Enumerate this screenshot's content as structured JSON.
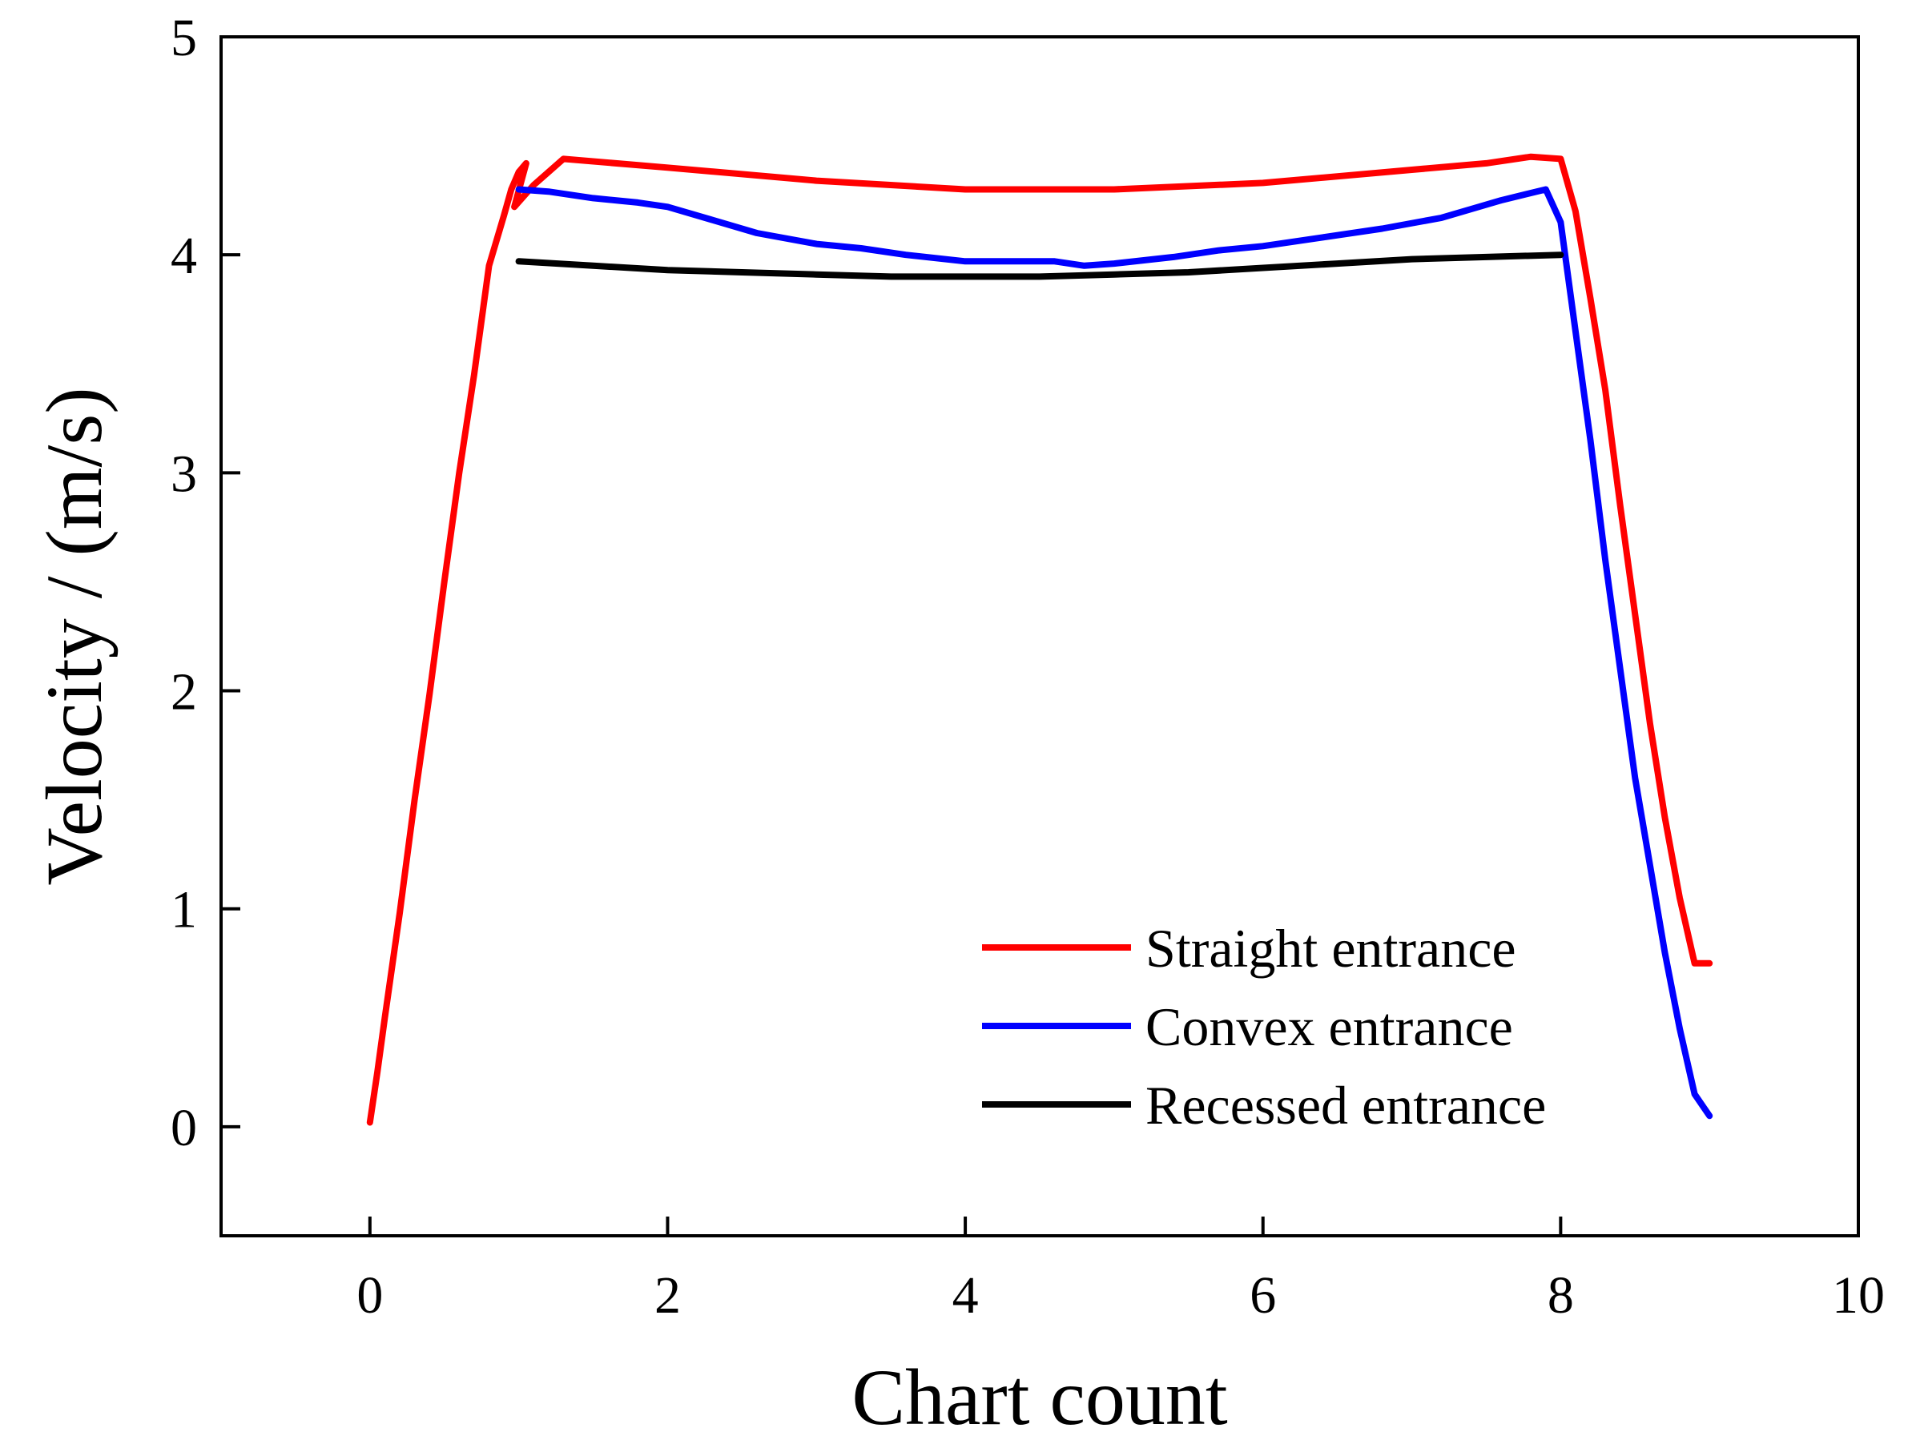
{
  "chart_data": {
    "type": "line",
    "title": "",
    "xlabel": "Chart count",
    "ylabel": "Velocity / (m/s)",
    "xlim": [
      -1,
      10
    ],
    "ylim": [
      -0.5,
      5
    ],
    "xticks": [
      0,
      2,
      4,
      6,
      8,
      10
    ],
    "yticks": [
      0,
      1,
      2,
      3,
      4,
      5
    ],
    "xtick_labels": [
      "0",
      "2",
      "4",
      "6",
      "8",
      "10"
    ],
    "ytick_labels": [
      "0",
      "1",
      "2",
      "3",
      "4",
      "5"
    ],
    "grid": false,
    "legend_position": "bottom-right",
    "series": [
      {
        "name": "Straight entrance",
        "color": "#ff0000",
        "x": [
          0.0,
          0.05,
          0.1,
          0.2,
          0.3,
          0.4,
          0.5,
          0.6,
          0.7,
          0.8,
          0.9,
          0.95,
          1.0,
          1.05,
          0.97,
          1.1,
          1.3,
          2.0,
          3.0,
          4.0,
          5.0,
          6.0,
          7.0,
          7.5,
          7.8,
          8.0,
          8.1,
          8.2,
          8.3,
          8.4,
          8.5,
          8.6,
          8.7,
          8.8,
          8.9,
          9.0
        ],
        "y": [
          0.02,
          0.25,
          0.5,
          0.98,
          1.5,
          1.98,
          2.5,
          3.0,
          3.45,
          3.95,
          4.18,
          4.3,
          4.38,
          4.42,
          4.22,
          4.32,
          4.44,
          4.4,
          4.34,
          4.3,
          4.3,
          4.33,
          4.39,
          4.42,
          4.45,
          4.44,
          4.2,
          3.8,
          3.38,
          2.85,
          2.35,
          1.85,
          1.42,
          1.05,
          0.75,
          0.75
        ]
      },
      {
        "name": "Convex entrance",
        "color": "#0000ff",
        "x": [
          1.0,
          1.2,
          1.5,
          1.8,
          2.0,
          2.3,
          2.6,
          3.0,
          3.3,
          3.6,
          4.0,
          4.3,
          4.6,
          4.8,
          5.0,
          5.4,
          5.7,
          6.0,
          6.4,
          6.8,
          7.2,
          7.6,
          7.9,
          8.0,
          8.1,
          8.2,
          8.3,
          8.4,
          8.5,
          8.6,
          8.7,
          8.8,
          8.9,
          9.0
        ],
        "y": [
          4.3,
          4.29,
          4.26,
          4.24,
          4.22,
          4.16,
          4.1,
          4.05,
          4.03,
          4.0,
          3.97,
          3.97,
          3.97,
          3.95,
          3.96,
          3.99,
          4.02,
          4.04,
          4.08,
          4.12,
          4.17,
          4.25,
          4.3,
          4.15,
          3.65,
          3.15,
          2.6,
          2.1,
          1.6,
          1.2,
          0.8,
          0.45,
          0.15,
          0.05
        ]
      },
      {
        "name": "Recessed entrance",
        "color": "#000000",
        "x": [
          1.0,
          1.5,
          2.0,
          2.5,
          3.0,
          3.5,
          4.0,
          4.5,
          5.0,
          5.5,
          6.0,
          6.5,
          7.0,
          7.5,
          8.0
        ],
        "y": [
          3.97,
          3.95,
          3.93,
          3.92,
          3.91,
          3.9,
          3.9,
          3.9,
          3.91,
          3.92,
          3.94,
          3.96,
          3.98,
          3.99,
          4.0
        ]
      }
    ]
  }
}
